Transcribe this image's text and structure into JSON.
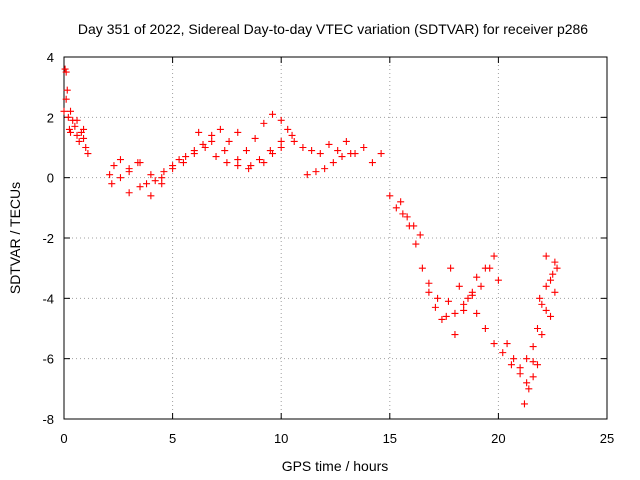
{
  "chart_data": {
    "type": "scatter",
    "title": "Day 351 of 2022, Sidereal Day-to-day VTEC variation (SDTVAR) for receiver p286",
    "xlabel": "GPS time / hours",
    "ylabel": "SDTVAR / TECUs",
    "xlim": [
      0,
      25
    ],
    "ylim": [
      -8,
      4
    ],
    "xticks": [
      "0",
      "5",
      "10",
      "15",
      "20",
      "25"
    ],
    "yticks": [
      "4",
      "2",
      "0",
      "-2",
      "-4",
      "-6",
      "-8"
    ],
    "grid": true,
    "marker": "+",
    "series": [
      {
        "name": "SDTVAR",
        "color": "#ff0000",
        "x": [
          0.0,
          0.05,
          0.1,
          0.15,
          0.2,
          0.25,
          0.3,
          0.4,
          0.5,
          0.6,
          0.7,
          0.8,
          0.9,
          1.0,
          1.1,
          2.1,
          2.3,
          2.6,
          3.0,
          3.4,
          3.8,
          4.2,
          4.6,
          5.0,
          5.3,
          5.6,
          6.0,
          6.4,
          6.8,
          7.2,
          7.6,
          8.0,
          8.4,
          8.8,
          9.2,
          9.6,
          10.0,
          10.3,
          10.6,
          11.0,
          11.4,
          11.8,
          12.2,
          12.6,
          13.0,
          13.4,
          13.8,
          14.2,
          14.6,
          15.0,
          15.3,
          15.6,
          15.9,
          16.2,
          16.5,
          16.8,
          17.1,
          17.4,
          17.7,
          18.0,
          18.4,
          18.8,
          19.2,
          19.6,
          20.0,
          20.4,
          20.7,
          21.0,
          21.3,
          21.6,
          21.9,
          22.2,
          22.5,
          22.7,
          0.1,
          0.3,
          0.6,
          0.9,
          2.2,
          2.6,
          3.0,
          3.5,
          4.0,
          4.5,
          5.0,
          5.5,
          6.0,
          6.5,
          7.0,
          7.5,
          8.0,
          8.5,
          9.0,
          9.5,
          10.0,
          10.5,
          3.0,
          3.5,
          4.0,
          4.5,
          6.2,
          6.8,
          7.4,
          8.0,
          8.6,
          9.2,
          9.6,
          10.0,
          11.2,
          11.6,
          12.0,
          12.4,
          12.8,
          13.2,
          15.5,
          15.8,
          16.1,
          16.4,
          16.8,
          17.2,
          17.6,
          18.0,
          18.4,
          18.8,
          19.0,
          19.4,
          19.8,
          20.2,
          20.6,
          21.0,
          21.3,
          21.6,
          21.8,
          22.0,
          22.2,
          22.4,
          22.6,
          17.8,
          18.2,
          18.6,
          19.0,
          19.4,
          19.8,
          21.2,
          21.4,
          21.6,
          21.8,
          22.0,
          22.2,
          22.4,
          22.6
        ],
        "y": [
          2.2,
          3.6,
          3.5,
          2.9,
          2.0,
          1.6,
          1.5,
          1.9,
          1.7,
          1.4,
          1.2,
          1.5,
          1.3,
          1.0,
          0.8,
          0.1,
          0.4,
          0.6,
          0.3,
          0.5,
          -0.2,
          -0.1,
          0.2,
          0.4,
          0.6,
          0.7,
          0.9,
          1.1,
          1.4,
          1.6,
          1.2,
          1.5,
          0.9,
          1.3,
          1.8,
          2.1,
          1.9,
          1.6,
          1.2,
          1.0,
          0.9,
          0.8,
          1.1,
          0.9,
          1.2,
          0.8,
          1.0,
          0.5,
          0.8,
          -0.6,
          -1.0,
          -1.2,
          -1.6,
          -2.2,
          -3.0,
          -3.8,
          -4.3,
          -4.7,
          -4.1,
          -4.5,
          -4.2,
          -3.9,
          -3.6,
          -3.0,
          -3.4,
          -5.5,
          -6.0,
          -6.3,
          -6.8,
          -6.1,
          -4.0,
          -2.6,
          -3.2,
          -3.0,
          2.6,
          2.2,
          1.9,
          1.6,
          -0.2,
          0.0,
          -0.5,
          -0.3,
          -0.6,
          -0.2,
          0.3,
          0.5,
          0.8,
          1.0,
          0.7,
          0.5,
          0.4,
          0.3,
          0.6,
          0.9,
          1.2,
          1.4,
          0.2,
          0.5,
          0.1,
          0.0,
          1.5,
          1.2,
          0.9,
          0.6,
          0.4,
          0.5,
          0.8,
          1.0,
          0.1,
          0.2,
          0.3,
          0.5,
          0.7,
          0.8,
          -0.8,
          -1.3,
          -1.6,
          -1.9,
          -3.5,
          -4.0,
          -4.6,
          -5.2,
          -4.4,
          -3.8,
          -4.5,
          -5.0,
          -5.5,
          -5.8,
          -6.2,
          -6.5,
          -6.0,
          -5.6,
          -5.0,
          -4.2,
          -3.6,
          -4.6,
          -3.8,
          -3.0,
          -3.6,
          -4.0,
          -3.3,
          -3.0,
          -2.6,
          -7.5,
          -7.0,
          -6.6,
          -6.2,
          -5.2,
          -4.4,
          -3.4,
          -2.8
        ]
      }
    ]
  }
}
